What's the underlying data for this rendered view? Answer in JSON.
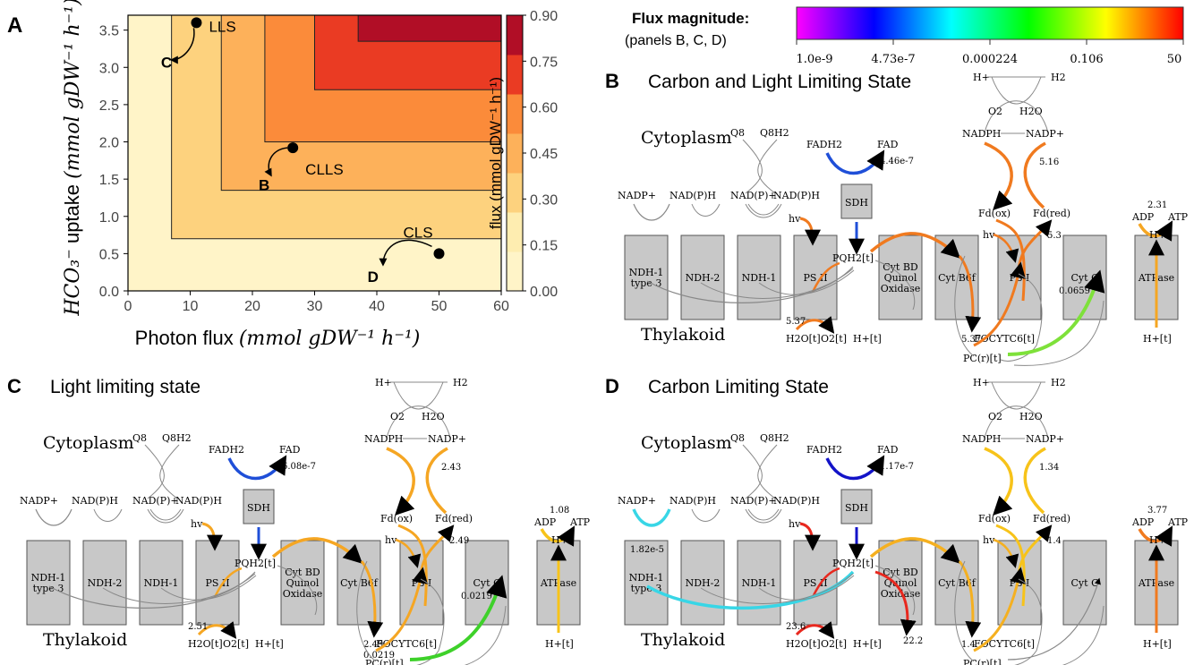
{
  "panel_a": {
    "letter": "A",
    "x_axis_label_plain": "Photon flux ",
    "x_axis_label_math": "(mmol gDW⁻¹ h⁻¹)",
    "y_axis_label_math_left": "HCO₃⁻",
    "y_axis_label_plain": " uptake ",
    "y_axis_label_math_right": "(mmol gDW⁻¹ h⁻¹)",
    "x_ticks": [
      "0",
      "10",
      "20",
      "30",
      "40",
      "50",
      "60"
    ],
    "y_ticks": [
      "0.0",
      "0.5",
      "1.0",
      "1.5",
      "2.0",
      "2.5",
      "3.0",
      "3.5"
    ],
    "colorbar_label": "flux (mmol gDW⁻¹ h⁻¹)",
    "colorbar_ticks": [
      "0.90",
      "0.75",
      "0.60",
      "0.45",
      "0.30",
      "0.15",
      "0.00"
    ],
    "states": [
      {
        "label": "LLS",
        "x": 11,
        "y": 3.6
      },
      {
        "label": "CLLS",
        "x": 26.5,
        "y": 1.92
      },
      {
        "label": "CLS",
        "x": 50,
        "y": 0.5
      }
    ],
    "arrow_labels": [
      "C",
      "B",
      "D"
    ],
    "contour_levels": [
      {
        "x": 7,
        "y": 0.7,
        "color": "#feedb0"
      },
      {
        "x": 15,
        "y": 1.35,
        "color": "#fdd27e"
      },
      {
        "x": 22,
        "y": 2.0,
        "color": "#fdb15a"
      },
      {
        "x": 30,
        "y": 2.7,
        "color": "#fb8b3a"
      },
      {
        "x": 37,
        "y": 3.35,
        "color": "#ea3b23"
      }
    ],
    "base_color": "#fff4c8",
    "top_color": "#b10e26"
  },
  "legend": {
    "title": "Flux magnitude:",
    "subtitle": "(panels B, C, D)",
    "ticks": [
      "1.0e-9",
      "4.73e-7",
      "0.000224",
      "0.106",
      "50"
    ]
  },
  "diagrams": {
    "B": {
      "letter": "B",
      "title": "Carbon and Light Limiting State",
      "cytoplasm": "Cytoplasm",
      "thylakoid": "Thylakoid",
      "boxes": [
        "NDH-1\ntype 3",
        "NDH-2",
        "NDH-1",
        "PS II",
        "Cyt BD\nQuinol\nOxidase",
        "Cyt B6f",
        "PS I",
        "Cyt C",
        "ATPase"
      ],
      "sdh": "SDH",
      "labels": {
        "nadp": "NADP+",
        "nadph_l": "NAD(P)H",
        "nadp_p": "NAD(P)+",
        "nadph_r": "NAD(P)H",
        "q8": "Q8",
        "q8h2": "Q8H2",
        "fadh2": "FADH2",
        "fad": "FAD",
        "hplus_top": "H+",
        "h2": "H2",
        "o2_top": "O2",
        "h2o_top": "H2O",
        "nadph_top": "NADPH",
        "nadp_top": "NADP+",
        "fdox": "Fd(ox)",
        "fdred": "Fd(red)",
        "hv1": "hv",
        "hv2": "hv",
        "pqh2": "PQH2[t]",
        "adp": "ADP",
        "atp": "ATP",
        "hplus_atp": "H+",
        "h2ot": "H2O[t]",
        "o2t": "O2[t]",
        "hplust": "H+[t]",
        "focytc": "FOCYTC6[t]",
        "pc": "PC(r)[t]",
        "hplust_atp": "H+[t]"
      },
      "values": {
        "sdh": "4.46e-7",
        "fnr": "5.16",
        "fd": "5.3",
        "atp": "2.31",
        "psii_low": "5.37",
        "b6f_low": "5.37",
        "cytc": "0.0659"
      },
      "colors": {
        "sdh": "#1f4fd8",
        "fnr": "#f07a1f",
        "fd": "#f07a1f",
        "atp": "#f5a623",
        "psii": "#f07a1f",
        "b6f": "#f07a1f",
        "psi": "#f07a1f",
        "cytc": "#7ee13a",
        "ndh": "#888888",
        "h2o": "#f07a1f",
        "pq": "#f07a1f",
        "atpcore": "#f5a623"
      }
    },
    "C": {
      "letter": "C",
      "title": "Light limiting state",
      "cytoplasm": "Cytoplasm",
      "thylakoid": "Thylakoid",
      "boxes": [
        "NDH-1\ntype 3",
        "NDH-2",
        "NDH-1",
        "PS II",
        "Cyt BD\nQuinol\nOxidase",
        "Cyt B6f",
        "PS I",
        "Cyt C",
        "ATPase"
      ],
      "sdh": "SDH",
      "labels": {
        "nadp": "NADP+",
        "nadph_l": "NAD(P)H",
        "nadp_p": "NAD(P)+",
        "nadph_r": "NAD(P)H",
        "q8": "Q8",
        "q8h2": "Q8H2",
        "fadh2": "FADH2",
        "fad": "FAD",
        "hplus_top": "H+",
        "h2": "H2",
        "o2_top": "O2",
        "h2o_top": "H2O",
        "nadph_top": "NADPH",
        "nadp_top": "NADP+",
        "fdox": "Fd(ox)",
        "fdred": "Fd(red)",
        "hv1": "hv",
        "hv2": "hv",
        "pqh2": "PQH2[t]",
        "adp": "ADP",
        "atp": "ATP",
        "hplus_atp": "H+",
        "h2ot": "H2O[t]",
        "o2t": "O2[t]",
        "hplust": "H+[t]",
        "focytc": "FOCYTC6[t]",
        "pc": "PC(r)[t]",
        "hplust_atp": "H+[t]"
      },
      "values": {
        "sdh": "6.08e-7",
        "fnr": "2.43",
        "fd": "2.49",
        "atp": "1.08",
        "psii_low": "2.51",
        "b6f_low": "2.49",
        "b6f_low2": "0.0219",
        "cytc": "0.0219"
      },
      "colors": {
        "sdh": "#1f4fd8",
        "fnr": "#f5a623",
        "fd": "#f5a623",
        "atp": "#f7c31a",
        "psii": "#f5a623",
        "b6f": "#f5a623",
        "psi": "#f5a623",
        "cytc": "#3ed12a",
        "ndh": "#888888",
        "h2o": "#f5a623",
        "pq": "#f5a623",
        "atpcore": "#f7c31a"
      }
    },
    "D": {
      "letter": "D",
      "title": "Carbon Limiting State",
      "cytoplasm": "Cytoplasm",
      "thylakoid": "Thylakoid",
      "boxes": [
        "NDH-1\ntype 3",
        "NDH-2",
        "NDH-1",
        "PS II",
        "Cyt BD\nQuinol\nOxidase",
        "Cyt B6f",
        "PS I",
        "Cyt C",
        "ATPase"
      ],
      "sdh": "SDH",
      "labels": {
        "nadp": "NADP+",
        "nadph_l": "NAD(P)H",
        "nadp_p": "NAD(P)+",
        "nadph_r": "NAD(P)H",
        "q8": "Q8",
        "q8h2": "Q8H2",
        "fadh2": "FADH2",
        "fad": "FAD",
        "hplus_top": "H+",
        "h2": "H2",
        "o2_top": "O2",
        "h2o_top": "H2O",
        "nadph_top": "NADPH",
        "nadp_top": "NADP+",
        "fdox": "Fd(ox)",
        "fdred": "Fd(red)",
        "hv1": "hv",
        "hv2": "hv",
        "pqh2": "PQH2[t]",
        "adp": "ADP",
        "atp": "ATP",
        "hplus_atp": "H+",
        "h2ot": "H2O[t]",
        "o2t": "O2[t]",
        "hplust": "H+[t]",
        "focytc": "FOCYTC6[t]",
        "pc": "PC(r)[t]",
        "hplust_atp": "H+[t]"
      },
      "values": {
        "sdh": "1.17e-7",
        "fnr": "1.34",
        "fd": "1.4",
        "atp": "3.77",
        "psii_low": "23.6",
        "b6f_low": "1.4",
        "ndh": "1.82e-5",
        "cytbd": "22.2"
      },
      "colors": {
        "sdh": "#1313c8",
        "fnr": "#f7c31a",
        "fd": "#f7c31a",
        "atp": "#f07a1f",
        "psii": "#e8281e",
        "b6f": "#f5b020",
        "psi": "#f5b020",
        "cytc": "#888888",
        "ndh": "#38d6e6",
        "h2o": "#e8281e",
        "pq": "#f5b020",
        "atpcore": "#f07a1f",
        "cytbd": "#e8281e"
      }
    }
  }
}
